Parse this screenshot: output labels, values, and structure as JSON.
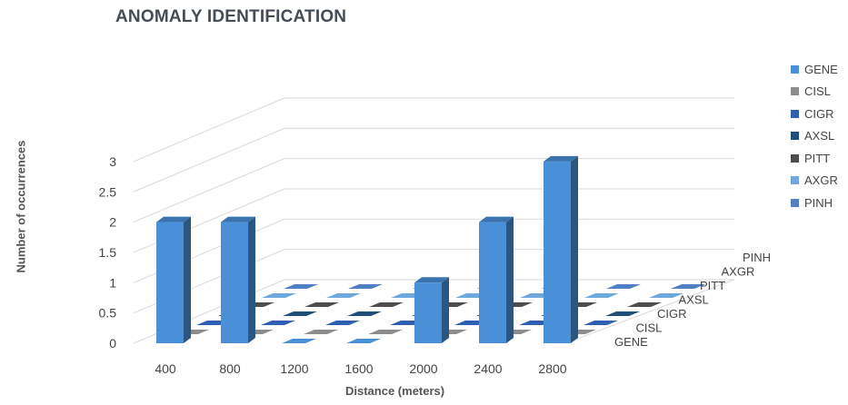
{
  "chart_data": {
    "type": "bar",
    "title": "ANOMALY IDENTIFICATION",
    "xlabel": "Distance (meters)",
    "ylabel": "Number of occurrences",
    "categories": [
      "400",
      "800",
      "1200",
      "1600",
      "2000",
      "2400",
      "2800"
    ],
    "y_ticks": [
      "0",
      "0.5",
      "1",
      "1.5",
      "2",
      "2.5",
      "3"
    ],
    "ylim": [
      0,
      3
    ],
    "grid": true,
    "legend_position": "right",
    "series": [
      {
        "name": "GENE",
        "color": "#4a90d9",
        "values": [
          2,
          2,
          0,
          0,
          1,
          2,
          3
        ]
      },
      {
        "name": "CISL",
        "color": "#8c8c8c",
        "values": [
          0,
          0,
          0,
          0,
          0,
          0,
          0
        ]
      },
      {
        "name": "CIGR",
        "color": "#2f5fb3",
        "values": [
          0,
          0,
          0,
          0,
          0,
          0,
          0
        ]
      },
      {
        "name": "AXSL",
        "color": "#1f4e79",
        "values": [
          0,
          0,
          0,
          0,
          0,
          0,
          0
        ]
      },
      {
        "name": "PITT",
        "color": "#4d4d4d",
        "values": [
          0,
          0,
          0,
          0,
          0,
          0,
          0
        ]
      },
      {
        "name": "AXGR",
        "color": "#6fa8dc",
        "values": [
          0,
          0,
          0,
          0,
          0,
          0,
          0
        ]
      },
      {
        "name": "PINH",
        "color": "#4f7fc4",
        "values": [
          0,
          0,
          0,
          0,
          0,
          0,
          0
        ]
      }
    ]
  }
}
